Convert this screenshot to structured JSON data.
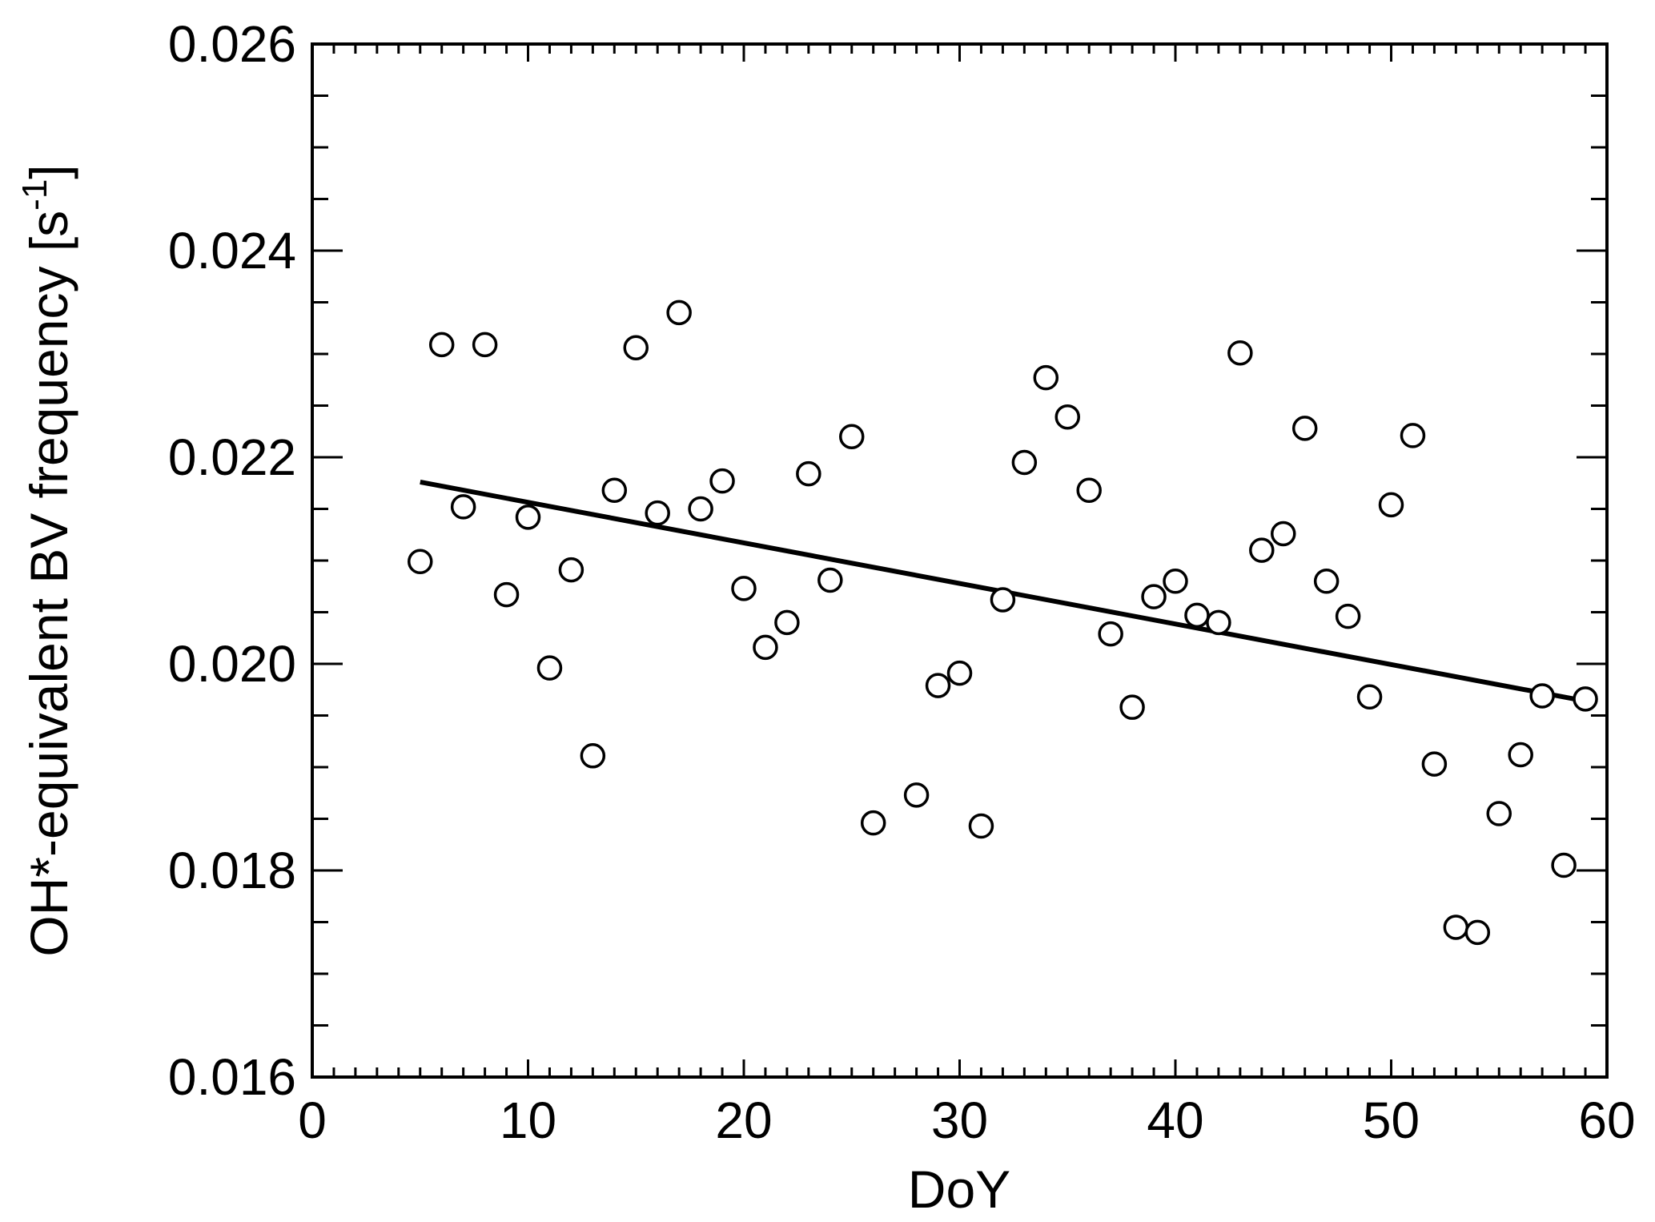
{
  "chart_data": {
    "type": "scatter",
    "xlabel": "DoY",
    "ylabel_main": "OH*-equivalent BV frequency [s",
    "ylabel_sup": "-1",
    "ylabel_close": "]",
    "xlim": [
      0,
      60
    ],
    "ylim": [
      0.016,
      0.026
    ],
    "xticks": [
      0,
      10,
      20,
      30,
      40,
      50,
      60
    ],
    "xtick_labels": [
      "0",
      "10",
      "20",
      "30",
      "40",
      "50",
      "60"
    ],
    "yticks": [
      0.016,
      0.018,
      0.02,
      0.022,
      0.024,
      0.026
    ],
    "ytick_labels": [
      "0.016",
      "0.018",
      "0.020",
      "0.022",
      "0.024",
      "0.026"
    ],
    "grid": false,
    "series": [
      {
        "marker": "open-circle",
        "points": [
          [
            5,
            0.02099
          ],
          [
            6,
            0.02309
          ],
          [
            7,
            0.02152
          ],
          [
            8,
            0.02309
          ],
          [
            9,
            0.02067
          ],
          [
            10,
            0.02142
          ],
          [
            11,
            0.01996
          ],
          [
            12,
            0.02091
          ],
          [
            13,
            0.01911
          ],
          [
            14,
            0.02168
          ],
          [
            15,
            0.02306
          ],
          [
            16,
            0.02146
          ],
          [
            17,
            0.0234
          ],
          [
            18,
            0.0215
          ],
          [
            19,
            0.02177
          ],
          [
            20,
            0.02073
          ],
          [
            21,
            0.02016
          ],
          [
            22,
            0.0204
          ],
          [
            23,
            0.02184
          ],
          [
            24,
            0.02081
          ],
          [
            25,
            0.0222
          ],
          [
            26,
            0.01846
          ],
          [
            28,
            0.01873
          ],
          [
            29,
            0.01979
          ],
          [
            30,
            0.01991
          ],
          [
            31,
            0.01843
          ],
          [
            32,
            0.02062
          ],
          [
            33,
            0.02195
          ],
          [
            34,
            0.02277
          ],
          [
            35,
            0.02239
          ],
          [
            36,
            0.02168
          ],
          [
            37,
            0.02029
          ],
          [
            38,
            0.01958
          ],
          [
            39,
            0.02065
          ],
          [
            40,
            0.0208
          ],
          [
            41,
            0.02047
          ],
          [
            42,
            0.0204
          ],
          [
            43,
            0.02301
          ],
          [
            44,
            0.0211
          ],
          [
            45,
            0.02126
          ],
          [
            46,
            0.02228
          ],
          [
            47,
            0.0208
          ],
          [
            48,
            0.02046
          ],
          [
            49,
            0.01968
          ],
          [
            50,
            0.02154
          ],
          [
            51,
            0.02221
          ],
          [
            52,
            0.01903
          ],
          [
            53,
            0.01745
          ],
          [
            54,
            0.0174
          ],
          [
            55,
            0.01855
          ],
          [
            56,
            0.01912
          ],
          [
            57,
            0.01969
          ],
          [
            58,
            0.01805
          ],
          [
            59,
            0.01966
          ]
        ]
      },
      {
        "type": "line",
        "points": [
          [
            5,
            0.02176
          ],
          [
            59,
            0.01964
          ]
        ]
      }
    ]
  }
}
